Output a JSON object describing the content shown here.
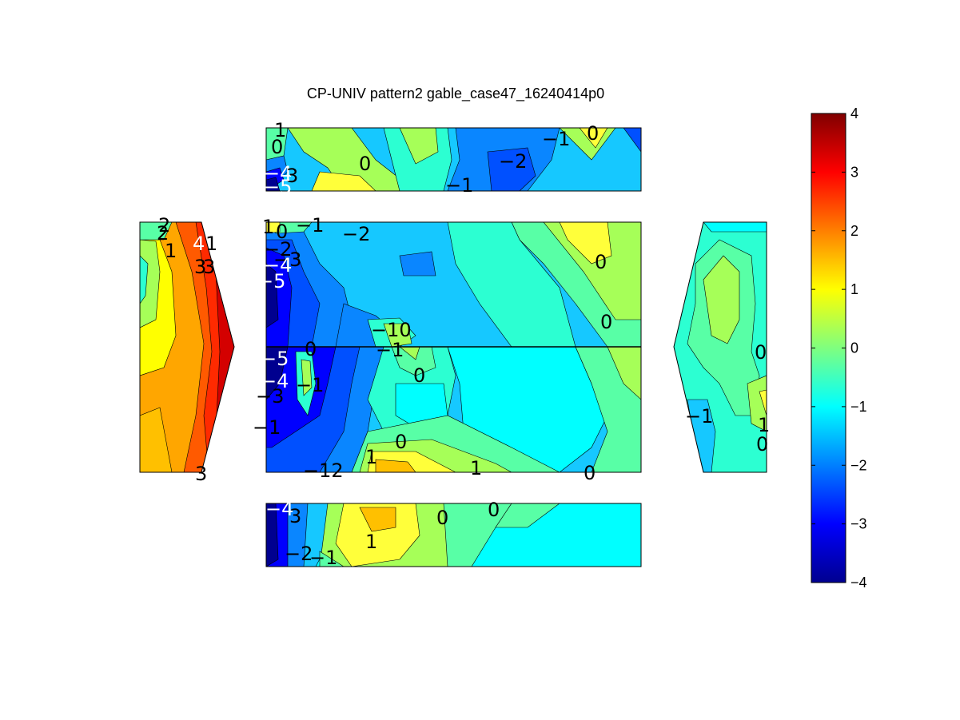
{
  "chart_data": {
    "type": "heatmap",
    "title": "CP-UNIV pattern2 gable_case47_16240414p0",
    "colormap": "jet",
    "clim": [
      -4,
      4
    ],
    "colorbar": {
      "ticks": [
        "4",
        "3",
        "2",
        "1",
        "0",
        "−1",
        "−2",
        "−3",
        "−4"
      ],
      "placement": "right"
    },
    "panels": [
      {
        "name": "top",
        "labels": [
          "1",
          "0",
          "−4",
          "3",
          "−5",
          "0",
          "−1",
          "−2",
          "−1",
          "0"
        ]
      },
      {
        "name": "left",
        "labels": [
          "2",
          "2",
          "1",
          "4",
          "1",
          "3",
          "3",
          "3"
        ]
      },
      {
        "name": "center",
        "labels": [
          "1",
          "0",
          "−1",
          "−2",
          "−2",
          "−3",
          "−4",
          "−5",
          "0",
          "0",
          "−10",
          "−1",
          "−5",
          "0",
          "−4",
          "−1",
          "0",
          "−3",
          "−1",
          "0",
          "1",
          "−12",
          "1",
          "0"
        ]
      },
      {
        "name": "right",
        "labels": [
          "0",
          "−1",
          "1",
          "0"
        ]
      },
      {
        "name": "bottom",
        "labels": [
          "−4",
          "3",
          "0",
          "0",
          "1",
          "−2",
          "−1"
        ]
      }
    ]
  }
}
